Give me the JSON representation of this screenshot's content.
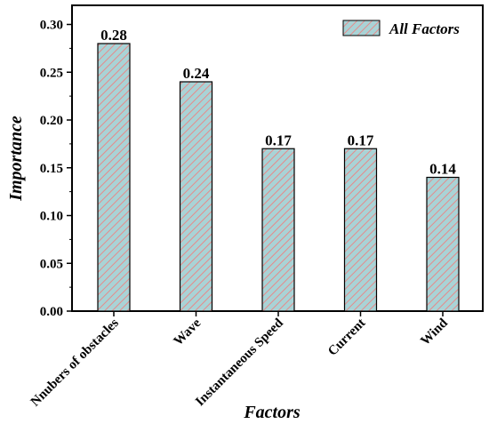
{
  "chart_data": {
    "type": "bar",
    "categories": [
      "Nnubers of obstacles",
      "Wave",
      "Instantaneous Speed",
      "Current",
      "Wind"
    ],
    "series": [
      {
        "name": "All Factors",
        "values": [
          0.28,
          0.24,
          0.17,
          0.17,
          0.14
        ]
      }
    ],
    "data_labels": [
      "0.28",
      "0.24",
      "0.17",
      "0.17",
      "0.14"
    ],
    "title": "",
    "xlabel": "Factors",
    "ylabel": "Importance",
    "ylim": [
      0.0,
      0.32
    ],
    "yticks": [
      0.0,
      0.05,
      0.1,
      0.15,
      0.2,
      0.25,
      0.3
    ],
    "ytick_labels": [
      "0.00",
      "0.05",
      "0.10",
      "0.15",
      "0.20",
      "0.25",
      "0.30"
    ],
    "grid": false,
    "legend": {
      "position": "top-right",
      "label": "All Factors"
    },
    "colors": {
      "bar_fill": "#a9d3d6",
      "hatch": "#e58a8a",
      "bar_edge": "#000000"
    }
  }
}
